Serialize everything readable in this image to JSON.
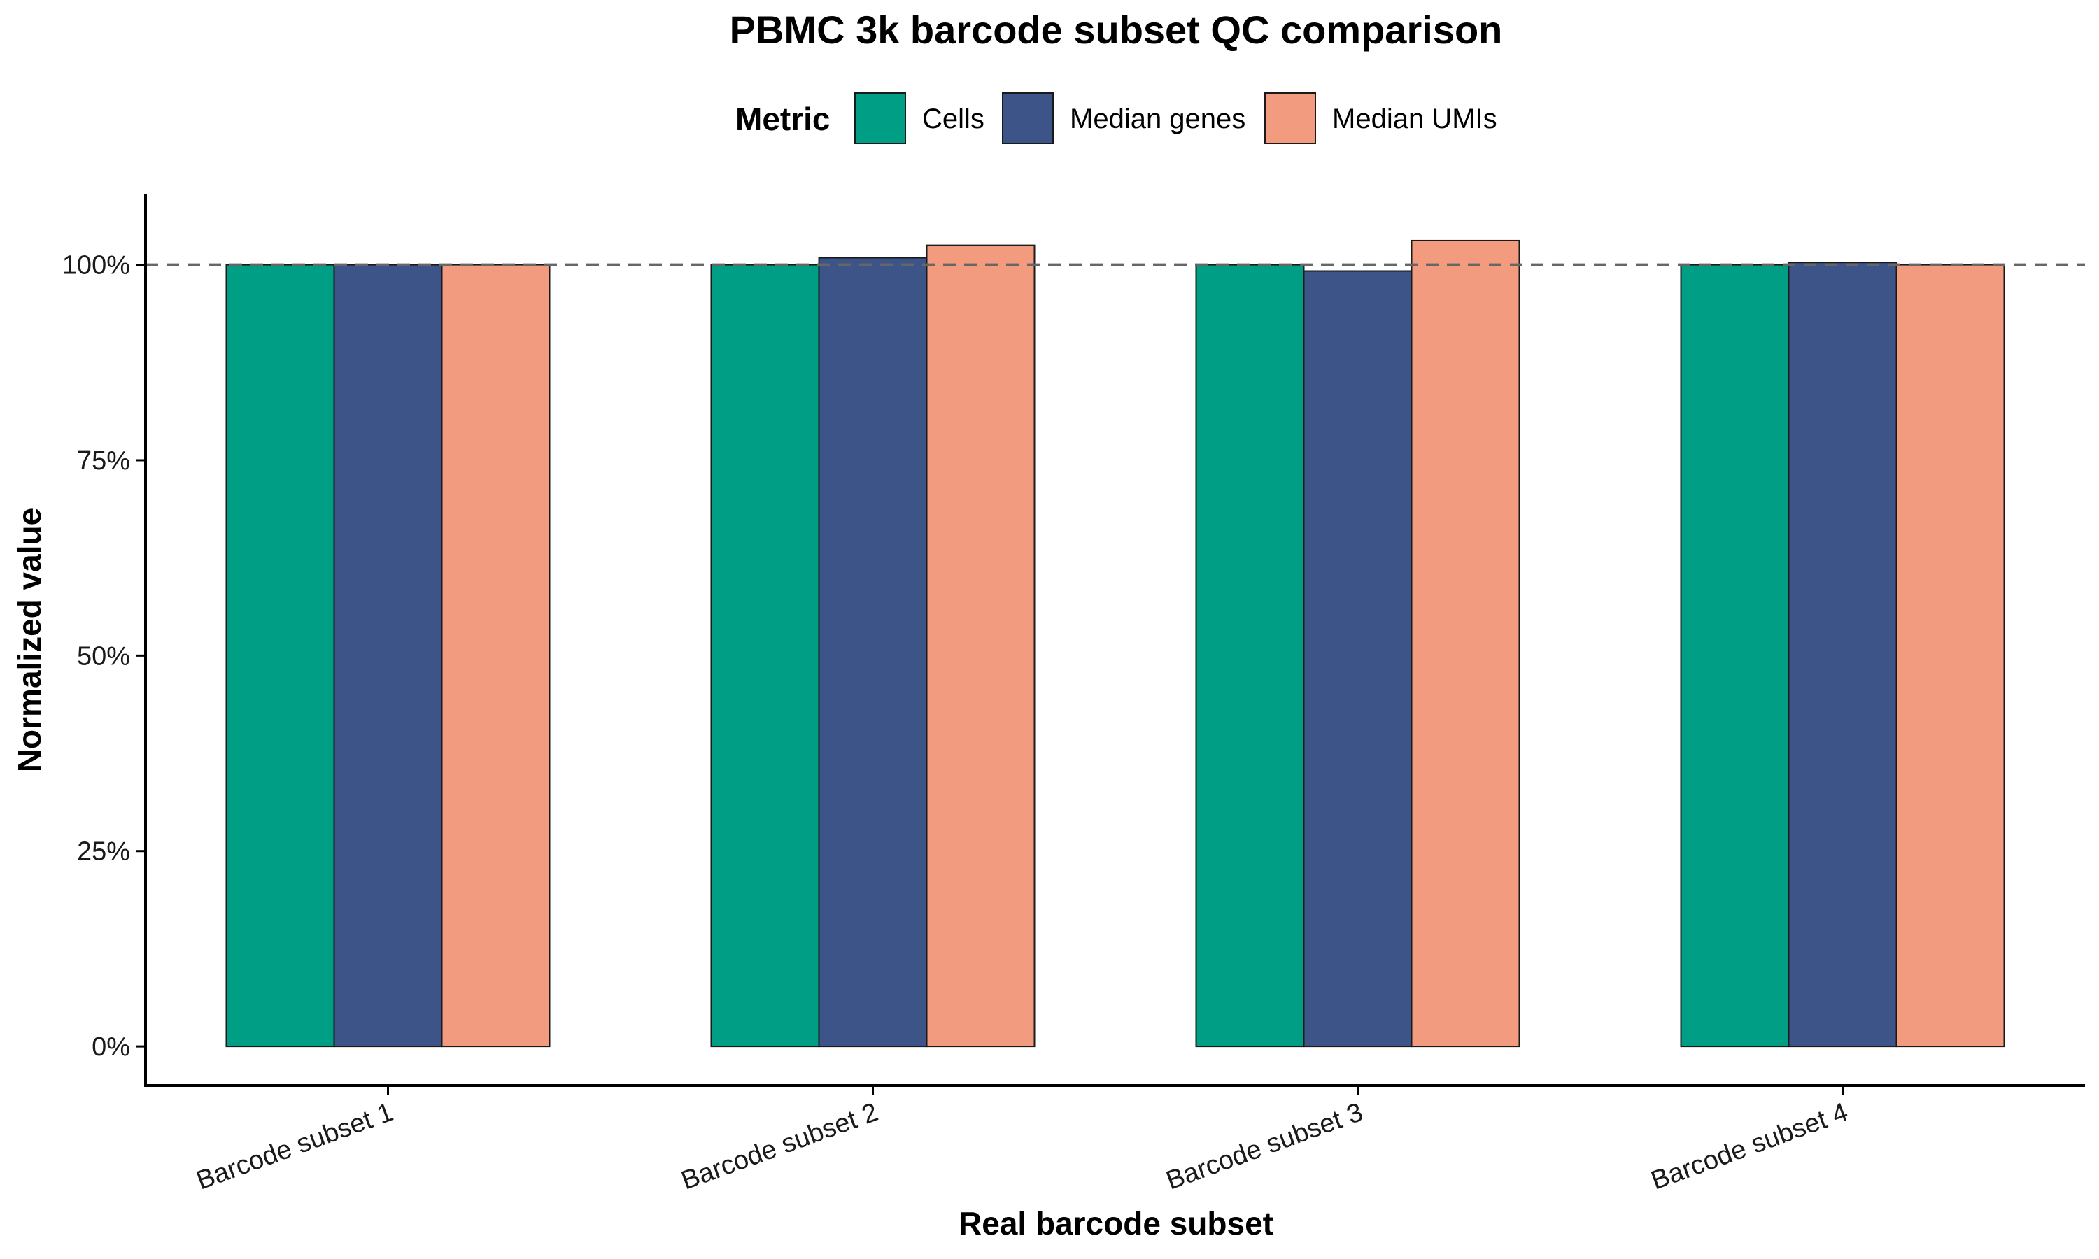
{
  "chart_data": {
    "type": "bar",
    "title": "PBMC 3k barcode subset QC comparison",
    "xlabel": "Real barcode subset",
    "ylabel": "Normalized value",
    "legend_title": "Metric",
    "legend_position": "top",
    "categories": [
      "Barcode subset 1",
      "Barcode subset 2",
      "Barcode subset 3",
      "Barcode subset 4"
    ],
    "series": [
      {
        "name": "Cells",
        "color": "#009E84",
        "values": [
          1.0,
          1.0,
          1.0,
          1.0
        ]
      },
      {
        "name": "Median genes",
        "color": "#3D5488",
        "values": [
          1.0,
          1.009,
          0.992,
          1.003
        ]
      },
      {
        "name": "Median UMIs",
        "color": "#F39B7F",
        "values": [
          1.0,
          1.025,
          1.031,
          1.0
        ]
      }
    ],
    "ylim": [
      -0.05,
      1.09
    ],
    "y_ticks": [
      0,
      0.25,
      0.5,
      0.75,
      1.0
    ],
    "y_tick_labels": [
      "0%",
      "25%",
      "50%",
      "75%",
      "100%"
    ],
    "reference_line": {
      "value": 1.0,
      "style": "dashed",
      "color": "#666666"
    },
    "grid": false
  }
}
